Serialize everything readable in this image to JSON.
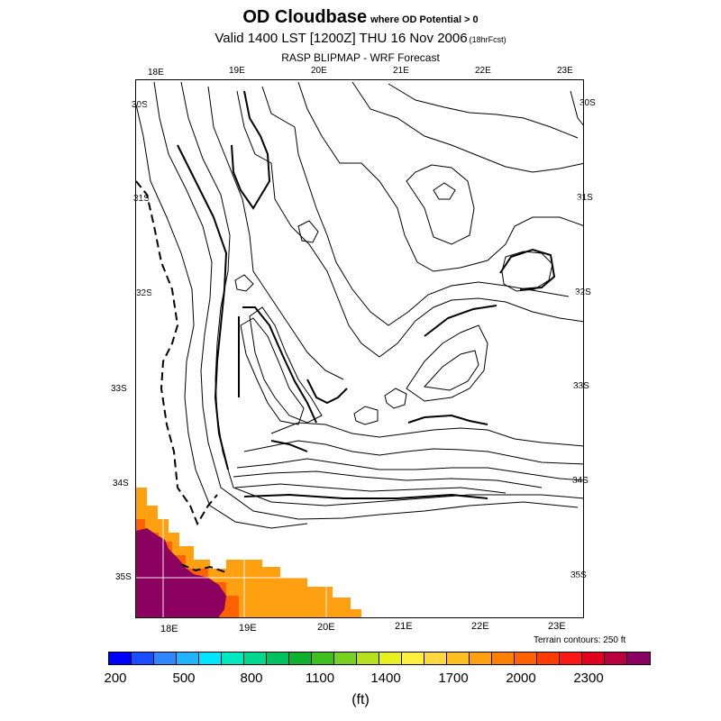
{
  "title": {
    "main": "OD Cloudbase",
    "qualifier": "where OD Potential > 0",
    "valid": "Valid 1400 LST [1200Z] THU 16 Nov 2006",
    "forecast": "(18hrFcst)",
    "source": "RASP BLIPMAP - WRF Forecast"
  },
  "axes": {
    "lon_top": [
      "18E",
      "19E",
      "20E",
      "21E",
      "22E",
      "23E"
    ],
    "lon_bottom": [
      "18E",
      "19E",
      "20E",
      "21E",
      "22E",
      "23E"
    ],
    "lat_left": [
      "30S",
      "31S",
      "32S",
      "33S",
      "34S",
      "35S"
    ],
    "lat_right": [
      "30S",
      "31S",
      "32S",
      "33S",
      "34S",
      "35S"
    ]
  },
  "terrain_note": "Terrain contours: 250 ft",
  "legend": {
    "units": "(ft)",
    "tick_labels": [
      "200",
      "500",
      "800",
      "1100",
      "1400",
      "1700",
      "2000",
      "2300"
    ],
    "range": [
      200,
      2400
    ],
    "step": 100,
    "colors": [
      "#0000ff",
      "#1a4dff",
      "#2f86ff",
      "#22b4ff",
      "#00e6ff",
      "#00e8c0",
      "#00d890",
      "#00c060",
      "#10b030",
      "#40c020",
      "#78d020",
      "#b4e020",
      "#e8f020",
      "#fff040",
      "#ffd840",
      "#ffbf20",
      "#ffa010",
      "#ff8000",
      "#ff6000",
      "#ff3c00",
      "#ff1818",
      "#e00020",
      "#b80040",
      "#8c0060"
    ]
  },
  "map": {
    "fill_colors": {
      "orange": "#ffa010",
      "orange_red": "#ff6000",
      "maroon": "#8c0060"
    },
    "line_color": "#000000"
  }
}
